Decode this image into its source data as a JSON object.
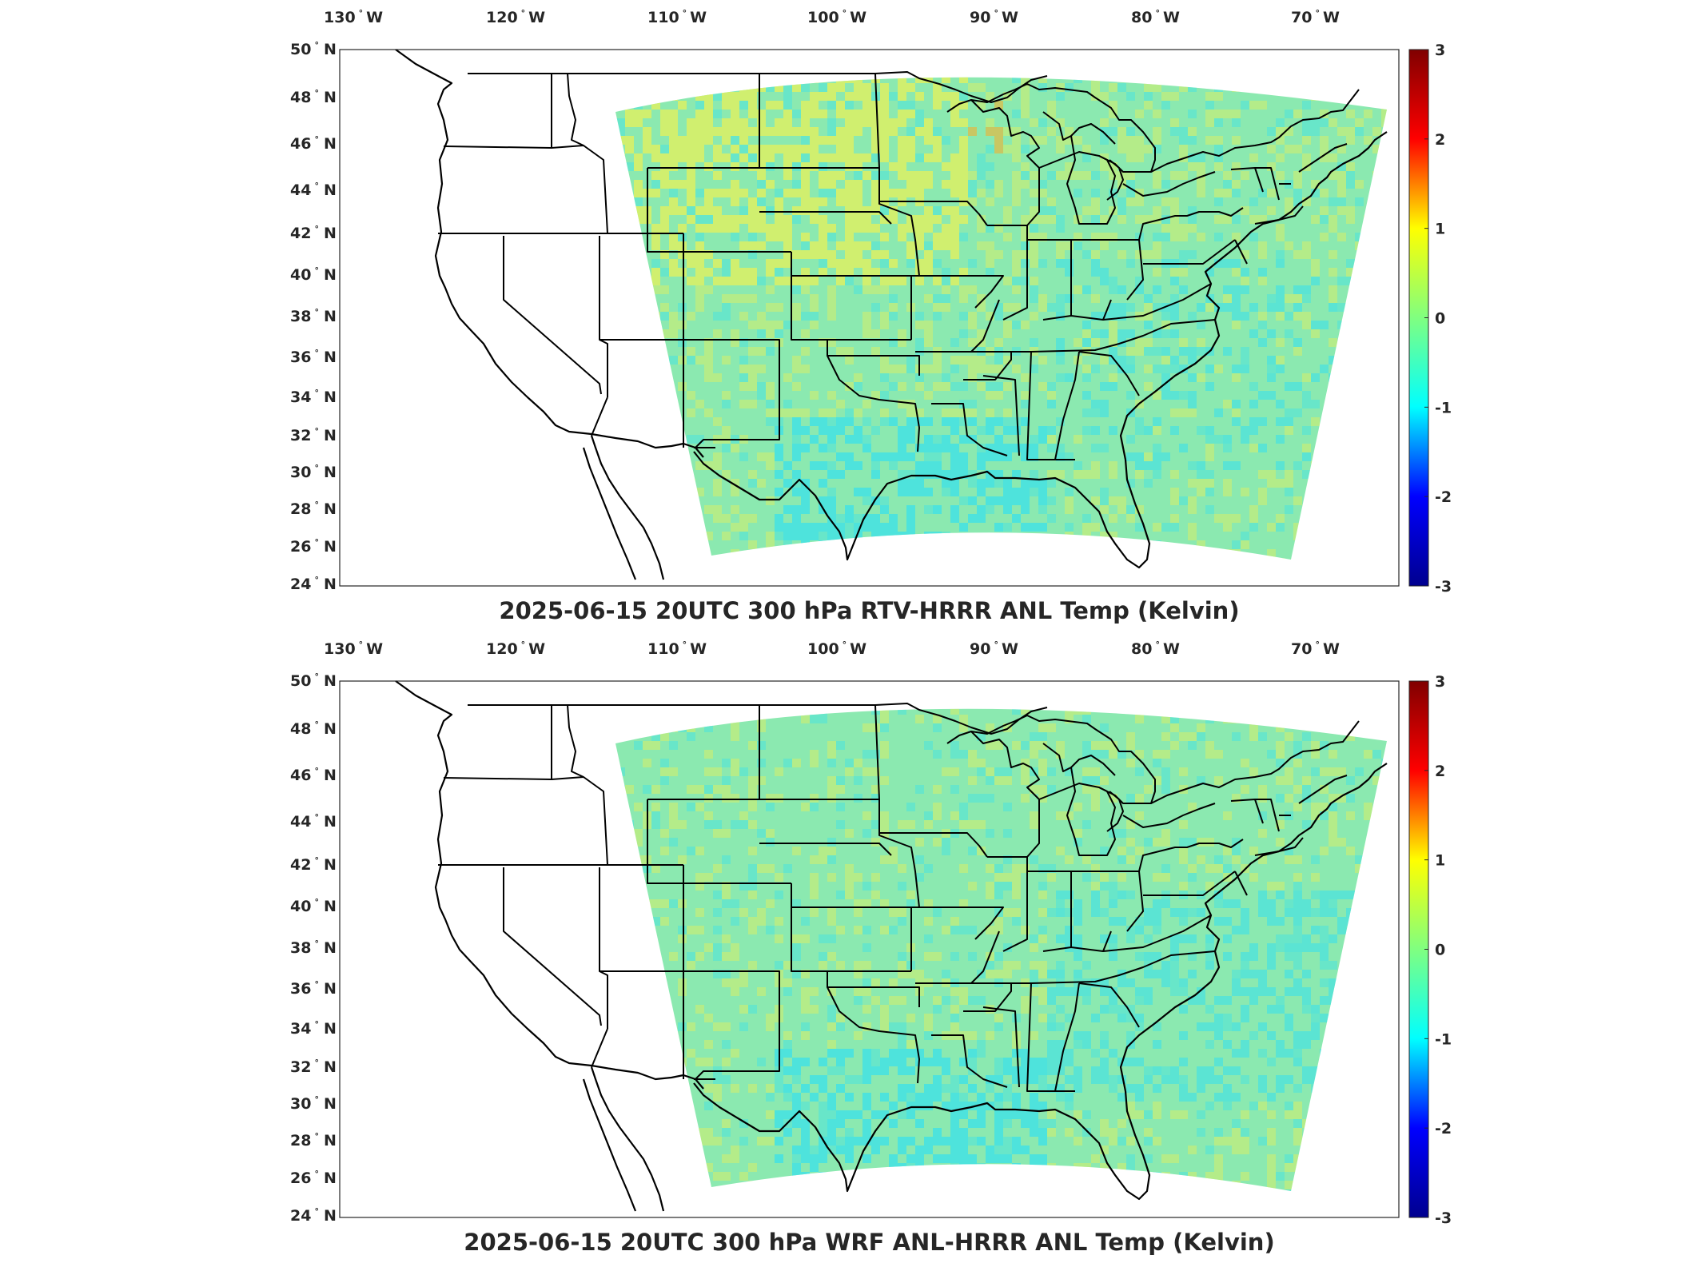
{
  "map_panels": [
    {
      "title": "2025-06-15 20UTC 300 hPa RTV-HRRR ANL Temp (Kelvin)",
      "longitude_labels": [
        "130",
        "120",
        "110",
        "100",
        "90",
        "80",
        "70"
      ],
      "longitude_suffix": "W",
      "latitude_labels": [
        "50",
        "48",
        "46",
        "44",
        "42",
        "40",
        "38",
        "36",
        "34",
        "32",
        "30",
        "28",
        "26",
        "24"
      ],
      "latitude_suffix": "N",
      "colorbar_ticks": [
        "3",
        "2",
        "1",
        "0",
        "-1",
        "-2",
        "-3"
      ],
      "colorbar_range": [
        -3,
        3
      ],
      "colormap": "jet",
      "field_tint": "warm"
    },
    {
      "title": "2025-06-15 20UTC 300 hPa WRF ANL-HRRR ANL Temp (Kelvin)",
      "longitude_labels": [
        "130",
        "120",
        "110",
        "100",
        "90",
        "80",
        "70"
      ],
      "longitude_suffix": "W",
      "latitude_labels": [
        "50",
        "48",
        "46",
        "44",
        "42",
        "40",
        "38",
        "36",
        "34",
        "32",
        "30",
        "28",
        "26",
        "24"
      ],
      "latitude_suffix": "N",
      "colorbar_ticks": [
        "3",
        "2",
        "1",
        "0",
        "-1",
        "-2",
        "-3"
      ],
      "colorbar_range": [
        -3,
        3
      ],
      "colormap": "jet",
      "field_tint": "cool"
    }
  ],
  "colors": {
    "jet_stops": [
      "#00008f",
      "#0000ff",
      "#00ffff",
      "#80ff80",
      "#ffff00",
      "#ff0000",
      "#800000"
    ],
    "field_base": "#8be9b0",
    "field_warm": "#e7f05a",
    "field_cool": "#35e0f0",
    "outline": "#000000"
  }
}
